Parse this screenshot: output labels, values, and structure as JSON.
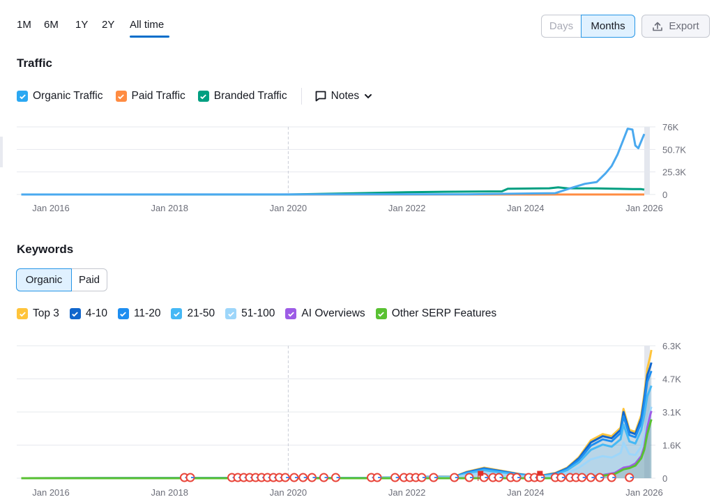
{
  "periods": [
    "1M",
    "6M",
    "1Y",
    "2Y",
    "All time"
  ],
  "active_period": "All time",
  "granularity": {
    "days": "Days",
    "months": "Months",
    "active": "Months"
  },
  "export_label": "Export",
  "traffic": {
    "title": "Traffic",
    "legend": [
      {
        "label": "Organic Traffic",
        "color": "#2ba8f2",
        "checked": true
      },
      {
        "label": "Paid Traffic",
        "color": "#ff8c42",
        "checked": true
      },
      {
        "label": "Branded Traffic",
        "color": "#009f81",
        "checked": true
      }
    ],
    "notes_label": "Notes"
  },
  "keywords": {
    "title": "Keywords",
    "tabs": [
      "Organic",
      "Paid"
    ],
    "active_tab": "Organic",
    "legend": [
      {
        "label": "Top 3",
        "color": "#ffc43b",
        "checked": true
      },
      {
        "label": "4-10",
        "color": "#1166cc",
        "checked": true
      },
      {
        "label": "11-20",
        "color": "#1e8ef0",
        "checked": true
      },
      {
        "label": "21-50",
        "color": "#45b8f5",
        "checked": true
      },
      {
        "label": "51-100",
        "color": "#9dd6fa",
        "checked": true
      },
      {
        "label": "AI Overviews",
        "color": "#9d5ce6",
        "checked": true
      },
      {
        "label": "Other SERP Features",
        "color": "#59c132",
        "checked": true
      }
    ]
  },
  "chart_data": [
    {
      "type": "line",
      "name": "traffic",
      "x_ticks": [
        "Jan 2016",
        "Jan 2018",
        "Jan 2020",
        "Jan 2022",
        "Jan 2024",
        "Jan 2026"
      ],
      "x_range": [
        2015.5,
        2026.2
      ],
      "y_ticks": [
        "76K",
        "50.7K",
        "25.3K",
        "0"
      ],
      "ylim": [
        0,
        76000
      ],
      "grid": true,
      "series": [
        {
          "name": "Organic Traffic",
          "color": "#4aa9ef",
          "points": [
            [
              2015.5,
              0
            ],
            [
              2023.0,
              200
            ],
            [
              2024.5,
              1500
            ],
            [
              2024.8,
              8000
            ],
            [
              2025.0,
              12000
            ],
            [
              2025.2,
              14000
            ],
            [
              2025.35,
              24000
            ],
            [
              2025.45,
              32000
            ],
            [
              2025.55,
              45000
            ],
            [
              2025.65,
              62000
            ],
            [
              2025.72,
              74000
            ],
            [
              2025.8,
              73000
            ],
            [
              2025.85,
              55000
            ],
            [
              2025.9,
              52000
            ],
            [
              2025.95,
              60000
            ],
            [
              2026.0,
              68000
            ]
          ]
        },
        {
          "name": "Paid Traffic",
          "color": "#ff8c42",
          "points": [
            [
              2015.5,
              0
            ],
            [
              2021.5,
              0
            ],
            [
              2026.0,
              0
            ]
          ]
        },
        {
          "name": "Branded Traffic",
          "color": "#009f81",
          "points": [
            [
              2015.5,
              0
            ],
            [
              2020.0,
              0
            ],
            [
              2021.2,
              1500
            ],
            [
              2022.0,
              2500
            ],
            [
              2022.5,
              3000
            ],
            [
              2023.6,
              3500
            ],
            [
              2023.7,
              6500
            ],
            [
              2024.4,
              7000
            ],
            [
              2024.55,
              8000
            ],
            [
              2024.7,
              7000
            ],
            [
              2025.2,
              6800
            ],
            [
              2025.5,
              6500
            ],
            [
              2025.8,
              6000
            ],
            [
              2025.95,
              6000
            ],
            [
              2026.0,
              5500
            ]
          ]
        }
      ]
    },
    {
      "type": "area",
      "name": "keywords",
      "x_ticks": [
        "Jan 2016",
        "Jan 2018",
        "Jan 2020",
        "Jan 2022",
        "Jan 2024",
        "Jan 2026"
      ],
      "x_range": [
        2015.5,
        2026.2
      ],
      "y_ticks": [
        "6.3K",
        "4.7K",
        "3.1K",
        "1.6K",
        "0"
      ],
      "ylim": [
        0,
        6300
      ],
      "grid": true,
      "series": [
        {
          "name": "Top 3",
          "color": "#ffc43b",
          "points": [
            [
              2015.5,
              0
            ],
            [
              2021.5,
              20
            ],
            [
              2022.0,
              60
            ],
            [
              2022.8,
              80
            ],
            [
              2023.0,
              300
            ],
            [
              2023.3,
              500
            ],
            [
              2023.6,
              350
            ],
            [
              2023.9,
              200
            ],
            [
              2024.2,
              100
            ],
            [
              2024.5,
              250
            ],
            [
              2024.7,
              500
            ],
            [
              2024.9,
              1000
            ],
            [
              2025.1,
              1800
            ],
            [
              2025.3,
              2100
            ],
            [
              2025.45,
              2000
            ],
            [
              2025.6,
              2400
            ],
            [
              2025.65,
              3300
            ],
            [
              2025.75,
              2300
            ],
            [
              2025.85,
              2200
            ],
            [
              2025.95,
              3000
            ],
            [
              2026.0,
              4000
            ],
            [
              2026.05,
              5200
            ],
            [
              2026.1,
              5800
            ],
            [
              2026.12,
              6100
            ]
          ]
        },
        {
          "name": "4-10",
          "color": "#1166cc",
          "points": [
            [
              2015.5,
              0
            ],
            [
              2021.5,
              18
            ],
            [
              2022.0,
              55
            ],
            [
              2022.8,
              70
            ],
            [
              2023.0,
              280
            ],
            [
              2023.3,
              470
            ],
            [
              2023.6,
              330
            ],
            [
              2023.9,
              190
            ],
            [
              2024.2,
              90
            ],
            [
              2024.5,
              230
            ],
            [
              2024.7,
              470
            ],
            [
              2024.9,
              950
            ],
            [
              2025.1,
              1700
            ],
            [
              2025.3,
              2000
            ],
            [
              2025.45,
              1900
            ],
            [
              2025.6,
              2300
            ],
            [
              2025.65,
              3150
            ],
            [
              2025.75,
              2200
            ],
            [
              2025.85,
              2100
            ],
            [
              2025.95,
              2850
            ],
            [
              2026.0,
              3800
            ],
            [
              2026.05,
              4900
            ],
            [
              2026.1,
              5300
            ],
            [
              2026.12,
              5500
            ]
          ]
        },
        {
          "name": "11-20",
          "color": "#1e8ef0",
          "points": [
            [
              2015.5,
              0
            ],
            [
              2021.5,
              15
            ],
            [
              2022.0,
              50
            ],
            [
              2022.8,
              65
            ],
            [
              2023.0,
              260
            ],
            [
              2023.3,
              440
            ],
            [
              2023.6,
              310
            ],
            [
              2023.9,
              180
            ],
            [
              2024.2,
              85
            ],
            [
              2024.5,
              210
            ],
            [
              2024.7,
              440
            ],
            [
              2024.9,
              880
            ],
            [
              2025.1,
              1550
            ],
            [
              2025.3,
              1850
            ],
            [
              2025.45,
              1750
            ],
            [
              2025.6,
              2150
            ],
            [
              2025.65,
              2950
            ],
            [
              2025.75,
              2050
            ],
            [
              2025.85,
              1950
            ],
            [
              2025.95,
              2650
            ],
            [
              2026.0,
              3550
            ],
            [
              2026.05,
              4600
            ],
            [
              2026.1,
              4950
            ],
            [
              2026.12,
              5100
            ]
          ]
        },
        {
          "name": "21-50",
          "color": "#45b8f5",
          "points": [
            [
              2015.5,
              0
            ],
            [
              2021.5,
              12
            ],
            [
              2022.0,
              40
            ],
            [
              2022.8,
              55
            ],
            [
              2023.0,
              220
            ],
            [
              2023.3,
              380
            ],
            [
              2023.6,
              270
            ],
            [
              2023.9,
              150
            ],
            [
              2024.2,
              70
            ],
            [
              2024.5,
              180
            ],
            [
              2024.7,
              380
            ],
            [
              2024.9,
              760
            ],
            [
              2025.1,
              1350
            ],
            [
              2025.3,
              1600
            ],
            [
              2025.45,
              1500
            ],
            [
              2025.6,
              1850
            ],
            [
              2025.65,
              2550
            ],
            [
              2025.75,
              1750
            ],
            [
              2025.85,
              1650
            ],
            [
              2025.95,
              2300
            ],
            [
              2026.0,
              3000
            ],
            [
              2026.05,
              3900
            ],
            [
              2026.1,
              4250
            ],
            [
              2026.12,
              4400
            ]
          ]
        },
        {
          "name": "51-100",
          "color": "#9dd6fa",
          "points": [
            [
              2015.5,
              0
            ],
            [
              2021.5,
              8
            ],
            [
              2022.0,
              25
            ],
            [
              2022.8,
              35
            ],
            [
              2023.0,
              150
            ],
            [
              2023.3,
              260
            ],
            [
              2023.6,
              180
            ],
            [
              2023.9,
              100
            ],
            [
              2024.2,
              50
            ],
            [
              2024.5,
              120
            ],
            [
              2024.7,
              250
            ],
            [
              2024.9,
              500
            ],
            [
              2025.1,
              900
            ],
            [
              2025.3,
              1050
            ],
            [
              2025.45,
              980
            ],
            [
              2025.6,
              1200
            ],
            [
              2025.65,
              1700
            ],
            [
              2025.75,
              1150
            ],
            [
              2025.85,
              1100
            ],
            [
              2025.95,
              1500
            ],
            [
              2026.0,
              2000
            ],
            [
              2026.05,
              2600
            ],
            [
              2026.1,
              3200
            ],
            [
              2026.12,
              3400
            ]
          ]
        },
        {
          "name": "AI Overviews",
          "color": "#9d5ce6",
          "points": [
            [
              2015.5,
              0
            ],
            [
              2024.8,
              0
            ],
            [
              2025.0,
              50
            ],
            [
              2025.3,
              150
            ],
            [
              2025.5,
              250
            ],
            [
              2025.65,
              500
            ],
            [
              2025.75,
              550
            ],
            [
              2025.85,
              700
            ],
            [
              2025.95,
              1050
            ],
            [
              2026.0,
              1500
            ],
            [
              2026.05,
              2400
            ],
            [
              2026.1,
              3000
            ],
            [
              2026.12,
              3200
            ]
          ]
        },
        {
          "name": "Other SERP Features",
          "color": "#59c132",
          "points": [
            [
              2015.5,
              0
            ],
            [
              2024.8,
              0
            ],
            [
              2025.0,
              30
            ],
            [
              2025.3,
              120
            ],
            [
              2025.5,
              200
            ],
            [
              2025.65,
              420
            ],
            [
              2025.75,
              480
            ],
            [
              2025.85,
              600
            ],
            [
              2025.95,
              950
            ],
            [
              2026.0,
              1350
            ],
            [
              2026.05,
              2100
            ],
            [
              2026.1,
              2600
            ],
            [
              2026.12,
              2800
            ]
          ]
        }
      ],
      "serp_markers": [
        2018.25,
        2018.35,
        2019.05,
        2019.15,
        2019.25,
        2019.35,
        2019.45,
        2019.55,
        2019.65,
        2019.75,
        2019.85,
        2019.95,
        2020.1,
        2020.25,
        2020.4,
        2020.6,
        2020.8,
        2021.4,
        2021.5,
        2021.8,
        2021.95,
        2022.05,
        2022.15,
        2022.25,
        2022.45,
        2022.8,
        2023.05,
        2023.3,
        2023.45,
        2023.55,
        2023.75,
        2023.85,
        2024.05,
        2024.15,
        2024.25,
        2024.5,
        2024.6,
        2024.75,
        2024.85,
        2024.95,
        2025.1,
        2025.25,
        2025.45,
        2025.75
      ]
    }
  ]
}
